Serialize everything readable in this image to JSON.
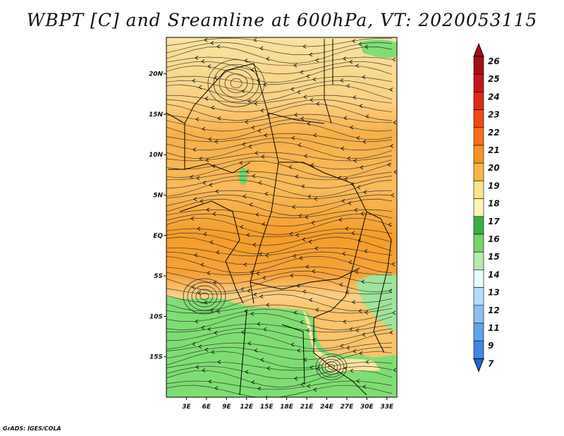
{
  "title": "WBPT [C] and Sreamline at 600hPa, VT: 2020053115",
  "credit": "GrADS: IGES/COLA",
  "map": {
    "variable": "Wet-bulb potential temperature",
    "unit": "C",
    "level": "600hPa",
    "lon_labels": [
      "3E",
      "6E",
      "9E",
      "12E",
      "15E",
      "18E",
      "21E",
      "24E",
      "27E",
      "30E",
      "33E"
    ],
    "lat_labels": [
      "20N",
      "15N",
      "10N",
      "5N",
      "EQ",
      "5S",
      "10S",
      "15S"
    ],
    "lon_range": [
      0,
      34.5
    ],
    "lat_range": [
      -20,
      24.5
    ]
  },
  "colorbar": {
    "labels": [
      "26",
      "25",
      "24",
      "23",
      "22",
      "21",
      "20",
      "19",
      "18",
      "17",
      "16",
      "15",
      "14",
      "13",
      "12",
      "11",
      "9",
      "7"
    ],
    "colors": [
      "#a50f15",
      "#c4161c",
      "#de2a17",
      "#ef4b12",
      "#f6701c",
      "#f79322",
      "#fbb542",
      "#fde38a",
      "#fbf3b7",
      "#36b244",
      "#74d665",
      "#b4ecaa",
      "#e6fbfb",
      "#b6dcfb",
      "#8ac0f2",
      "#5ea4ea",
      "#3f8ae0",
      "#1d66d4"
    ]
  }
}
